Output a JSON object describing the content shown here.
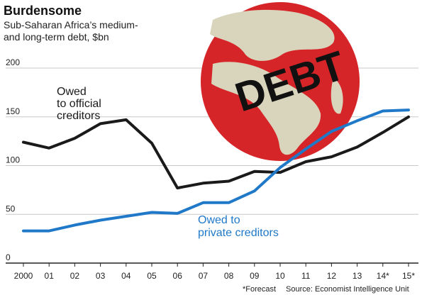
{
  "chart_data": {
    "type": "line",
    "title": "Burdensome",
    "subtitle_lines": [
      "Sub-Saharan Africa’s medium-",
      "and long-term debt, $bn"
    ],
    "xlabel": "",
    "ylabel": "",
    "categories": [
      "2000",
      "01",
      "02",
      "03",
      "04",
      "05",
      "06",
      "07",
      "08",
      "09",
      "10",
      "11",
      "12",
      "13",
      "14*",
      "15*"
    ],
    "series": [
      {
        "name_lines": [
          "Owed",
          "to official",
          "creditors"
        ],
        "color": "#1a1a1a",
        "values": [
          124,
          118,
          128,
          143,
          147,
          123,
          77,
          82,
          84,
          94,
          93,
          104,
          109,
          119,
          134,
          150
        ]
      },
      {
        "name_lines": [
          "Owed to",
          "private creditors"
        ],
        "color": "#1f78c8",
        "values": [
          33,
          33,
          39,
          44,
          48,
          52,
          51,
          62,
          62,
          74,
          98,
          117,
          135,
          146,
          156,
          157
        ]
      }
    ],
    "yticks": [
      0,
      50,
      100,
      150,
      200
    ],
    "ylim": [
      0,
      200
    ],
    "grid": true,
    "globe_label": "DEBT",
    "footnote": "*Forecast",
    "source": "Source: Economist Intelligence Unit"
  }
}
